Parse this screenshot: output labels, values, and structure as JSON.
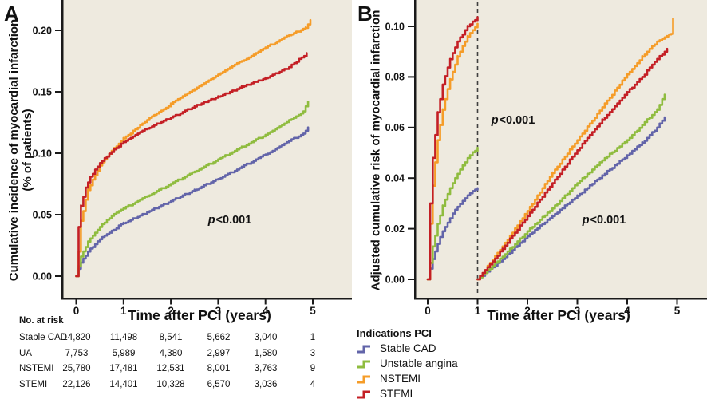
{
  "panel_a": {
    "label": "A",
    "ylabel_line1": "Cumulative incidence of myocardial infarction",
    "ylabel_line2": "(% of patients)",
    "xlabel": "Time after PCI (years)",
    "annotation": {
      "p": "p",
      "rest": "<0.001"
    }
  },
  "panel_b": {
    "label": "B",
    "ylabel": "Adjusted cumulative risk of myocardial infarction",
    "xlabel": "Time after PCI (years)",
    "annotation_top": {
      "p": "p",
      "rest": "<0.001"
    },
    "annotation_bottom": {
      "p": "p",
      "rest": "<0.001"
    }
  },
  "risk_table": {
    "header": "No. at risk",
    "rows": [
      {
        "label": "Stable CAD",
        "values": [
          "14,820",
          "11,498",
          "8,541",
          "5,662",
          "3,040",
          "1"
        ]
      },
      {
        "label": "UA",
        "values": [
          "7,753",
          "5,989",
          "4,380",
          "2,997",
          "1,580",
          "3"
        ]
      },
      {
        "label": "NSTEMI",
        "values": [
          "25,780",
          "17,481",
          "12,531",
          "8,001",
          "3,763",
          "9"
        ]
      },
      {
        "label": "STEMI",
        "values": [
          "22,126",
          "14,401",
          "10,328",
          "6,570",
          "3,036",
          "4"
        ]
      }
    ]
  },
  "legend": {
    "title": "Indications PCI",
    "items": [
      {
        "label": "Stable CAD",
        "color": "#6264a9",
        "icon": "step-line-swatch"
      },
      {
        "label": "Unstable angina",
        "color": "#8fbc3f",
        "icon": "step-line-swatch"
      },
      {
        "label": "NSTEMI",
        "color": "#f59c28",
        "icon": "step-line-swatch"
      },
      {
        "label": "STEMI",
        "color": "#c41f25",
        "icon": "step-line-swatch"
      }
    ]
  },
  "colors": {
    "plot_background": "#eeeadf",
    "axis": "#1a1a1a",
    "landmark_dashed_line": "#404040",
    "stable_cad": "#6264a9",
    "unstable_angina": "#8fbc3f",
    "nstemi": "#f59c28",
    "stemi": "#c41f25"
  },
  "chart_data": [
    {
      "type": "line",
      "panel": "A",
      "title": "",
      "xlabel": "Time after PCI (years)",
      "ylabel": "Cumulative incidence of myocardial infarction (% of patients)",
      "xlim": [
        -0.31,
        5.83
      ],
      "ylim": [
        -0.018,
        0.225
      ],
      "xticks": [
        0,
        1,
        2,
        3,
        4,
        5
      ],
      "yticks": [
        "0.00",
        "0.05",
        "0.10",
        "0.15",
        "0.20"
      ],
      "grid": false,
      "legend_position": "below-right-panel",
      "annotation": {
        "text": "p<0.001",
        "x": 3.2,
        "y": 0.045
      },
      "series": [
        {
          "name": "Stable CAD",
          "color": "#6264a9",
          "x": [
            0,
            0.05,
            0.1,
            0.25,
            0.5,
            0.75,
            1,
            1.5,
            2,
            2.5,
            3,
            3.5,
            4,
            4.5,
            4.8,
            4.9
          ],
          "y": [
            0,
            0.006,
            0.011,
            0.02,
            0.03,
            0.037,
            0.043,
            0.052,
            0.061,
            0.07,
            0.079,
            0.089,
            0.099,
            0.11,
            0.116,
            0.121
          ]
        },
        {
          "name": "Unstable angina",
          "color": "#8fbc3f",
          "x": [
            0,
            0.05,
            0.1,
            0.25,
            0.5,
            0.75,
            1,
            1.5,
            2,
            2.5,
            3,
            3.5,
            4,
            4.5,
            4.8,
            4.9
          ],
          "y": [
            0,
            0.008,
            0.016,
            0.028,
            0.04,
            0.049,
            0.055,
            0.065,
            0.075,
            0.085,
            0.095,
            0.105,
            0.115,
            0.127,
            0.134,
            0.142
          ]
        },
        {
          "name": "NSTEMI",
          "color": "#f59c28",
          "x": [
            0,
            0.05,
            0.1,
            0.25,
            0.5,
            0.75,
            1,
            1.5,
            2,
            2.5,
            3,
            3.5,
            4,
            4.5,
            4.85,
            4.95
          ],
          "y": [
            0,
            0.02,
            0.045,
            0.07,
            0.09,
            0.102,
            0.112,
            0.127,
            0.14,
            0.152,
            0.164,
            0.175,
            0.186,
            0.196,
            0.202,
            0.208
          ]
        },
        {
          "name": "STEMI",
          "color": "#c41f25",
          "x": [
            0,
            0.05,
            0.1,
            0.2,
            0.3,
            0.5,
            0.75,
            1,
            1.5,
            2,
            2.5,
            3,
            3.5,
            4,
            4.5,
            4.87
          ],
          "y": [
            0,
            0.04,
            0.057,
            0.072,
            0.081,
            0.092,
            0.101,
            0.109,
            0.12,
            0.129,
            0.138,
            0.146,
            0.154,
            0.161,
            0.17,
            0.181
          ]
        }
      ]
    },
    {
      "type": "line",
      "panel": "B",
      "title": "",
      "xlabel": "Time after PCI (years)",
      "ylabel": "Adjusted cumulative risk of myocardial infarction",
      "xlim": [
        -0.27,
        5.6
      ],
      "ylim": [
        -0.0073,
        0.1104
      ],
      "xticks": [
        0,
        1,
        2,
        3,
        4,
        5
      ],
      "yticks": [
        "0.00",
        "0.02",
        "0.04",
        "0.06",
        "0.08",
        "0.10"
      ],
      "grid": false,
      "landmark_x": 1,
      "annotations": [
        {
          "text": "p<0.001",
          "x": 1.7,
          "y": 0.063
        },
        {
          "text": "p<0.001",
          "x": 3.55,
          "y": 0.023
        }
      ],
      "series": [
        {
          "name": "Stable CAD",
          "color": "#6264a9",
          "segments": [
            {
              "x": [
                0,
                0.1,
                0.2,
                0.3,
                0.5,
                0.7,
                0.85,
                1
              ],
              "y": [
                0,
                0.008,
                0.014,
                0.019,
                0.026,
                0.031,
                0.034,
                0.036
              ]
            },
            {
              "x": [
                1,
                1.5,
                2,
                2.5,
                3,
                3.5,
                4,
                4.3,
                4.6,
                4.75
              ],
              "y": [
                0,
                0.008,
                0.017,
                0.025,
                0.033,
                0.041,
                0.049,
                0.054,
                0.06,
                0.064
              ]
            }
          ]
        },
        {
          "name": "Unstable angina",
          "color": "#8fbc3f",
          "segments": [
            {
              "x": [
                0,
                0.1,
                0.2,
                0.3,
                0.5,
                0.7,
                0.85,
                1
              ],
              "y": [
                0,
                0.013,
                0.022,
                0.029,
                0.038,
                0.045,
                0.049,
                0.052
              ]
            },
            {
              "x": [
                1,
                1.5,
                2,
                2.5,
                3,
                3.5,
                4,
                4.3,
                4.6,
                4.75
              ],
              "y": [
                0,
                0.009,
                0.019,
                0.028,
                0.038,
                0.047,
                0.055,
                0.061,
                0.067,
                0.073
              ]
            }
          ]
        },
        {
          "name": "NSTEMI",
          "color": "#f59c28",
          "segments": [
            {
              "x": [
                0,
                0.05,
                0.1,
                0.2,
                0.3,
                0.45,
                0.6,
                0.8,
                1
              ],
              "y": [
                0,
                0.022,
                0.037,
                0.055,
                0.067,
                0.079,
                0.088,
                0.096,
                0.101
              ]
            },
            {
              "x": [
                1,
                1.5,
                2,
                2.5,
                3,
                3.5,
                4,
                4.3,
                4.6,
                4.8,
                4.88,
                4.92
              ],
              "y": [
                0,
                0.013,
                0.027,
                0.042,
                0.055,
                0.068,
                0.081,
                0.088,
                0.094,
                0.096,
                0.097,
                0.103
              ]
            }
          ]
        },
        {
          "name": "STEMI",
          "color": "#c41f25",
          "segments": [
            {
              "x": [
                0,
                0.05,
                0.1,
                0.2,
                0.3,
                0.45,
                0.6,
                0.8,
                1
              ],
              "y": [
                0,
                0.03,
                0.048,
                0.066,
                0.077,
                0.087,
                0.094,
                0.1,
                0.1035
              ]
            },
            {
              "x": [
                1,
                1.5,
                2,
                2.5,
                3,
                3.5,
                4,
                4.3,
                4.6,
                4.8
              ],
              "y": [
                0,
                0.012,
                0.025,
                0.038,
                0.051,
                0.063,
                0.074,
                0.08,
                0.087,
                0.091
              ]
            }
          ]
        }
      ]
    }
  ]
}
